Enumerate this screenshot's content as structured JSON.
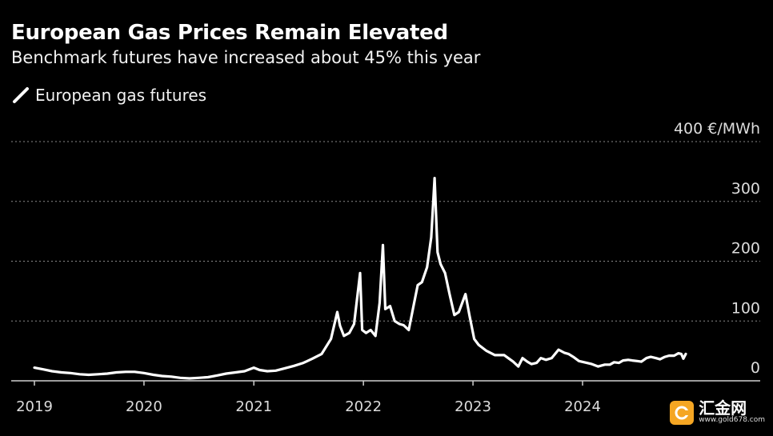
{
  "header": {
    "title": "European Gas Prices Remain Elevated",
    "subtitle": "Benchmark futures have increased about 45% this year"
  },
  "legend": {
    "label": "European gas futures",
    "color": "#ffffff"
  },
  "watermark": {
    "name": "汇金网",
    "url": "www.gold678.com",
    "badge_color": "#f5a623"
  },
  "chart_data": {
    "type": "line",
    "title": "European Gas Prices Remain Elevated",
    "subtitle": "Benchmark futures have increased about 45% this year",
    "ylabel": "",
    "y_unit": "€/MWh",
    "ylim": [
      0,
      400
    ],
    "xlim": [
      "2019-01-01",
      "2024-12-31"
    ],
    "y_ticks": [
      0,
      100,
      200,
      300,
      400
    ],
    "y_tick_labels": [
      "0",
      "100",
      "200",
      "300",
      "400 €/MWh"
    ],
    "x_tick_labels": [
      "2019",
      "2020",
      "2021",
      "2022",
      "2023",
      "2024"
    ],
    "x_ticks": [
      "2019-01-01",
      "2020-01-01",
      "2021-01-01",
      "2022-01-01",
      "2023-01-01",
      "2024-01-01"
    ],
    "grid": true,
    "legend_position": "top-left",
    "series": [
      {
        "name": "European gas futures",
        "color": "#ffffff",
        "points": [
          [
            "2019-01-01",
            22
          ],
          [
            "2019-02-01",
            19
          ],
          [
            "2019-03-01",
            16
          ],
          [
            "2019-04-01",
            14
          ],
          [
            "2019-05-01",
            13
          ],
          [
            "2019-06-01",
            11
          ],
          [
            "2019-07-01",
            10
          ],
          [
            "2019-08-01",
            11
          ],
          [
            "2019-09-01",
            12
          ],
          [
            "2019-10-01",
            14
          ],
          [
            "2019-11-01",
            15
          ],
          [
            "2019-12-01",
            15
          ],
          [
            "2020-01-01",
            13
          ],
          [
            "2020-02-01",
            10
          ],
          [
            "2020-03-01",
            8
          ],
          [
            "2020-04-01",
            7
          ],
          [
            "2020-05-01",
            5
          ],
          [
            "2020-06-01",
            4
          ],
          [
            "2020-07-01",
            5
          ],
          [
            "2020-08-01",
            6
          ],
          [
            "2020-09-01",
            9
          ],
          [
            "2020-10-01",
            12
          ],
          [
            "2020-11-01",
            14
          ],
          [
            "2020-12-01",
            16
          ],
          [
            "2021-01-01",
            22
          ],
          [
            "2021-01-20",
            18
          ],
          [
            "2021-02-15",
            16
          ],
          [
            "2021-03-15",
            17
          ],
          [
            "2021-04-15",
            21
          ],
          [
            "2021-05-15",
            25
          ],
          [
            "2021-06-15",
            30
          ],
          [
            "2021-07-15",
            37
          ],
          [
            "2021-08-15",
            45
          ],
          [
            "2021-09-15",
            70
          ],
          [
            "2021-10-06",
            115
          ],
          [
            "2021-10-15",
            92
          ],
          [
            "2021-10-28",
            75
          ],
          [
            "2021-11-15",
            80
          ],
          [
            "2021-12-01",
            95
          ],
          [
            "2021-12-21",
            180
          ],
          [
            "2021-12-28",
            85
          ],
          [
            "2022-01-10",
            80
          ],
          [
            "2022-01-25",
            85
          ],
          [
            "2022-02-10",
            75
          ],
          [
            "2022-02-24",
            130
          ],
          [
            "2022-03-07",
            227
          ],
          [
            "2022-03-15",
            120
          ],
          [
            "2022-03-31",
            125
          ],
          [
            "2022-04-15",
            100
          ],
          [
            "2022-05-01",
            95
          ],
          [
            "2022-05-15",
            93
          ],
          [
            "2022-06-01",
            85
          ],
          [
            "2022-06-15",
            120
          ],
          [
            "2022-07-01",
            160
          ],
          [
            "2022-07-15",
            165
          ],
          [
            "2022-08-01",
            190
          ],
          [
            "2022-08-15",
            240
          ],
          [
            "2022-08-26",
            339
          ],
          [
            "2022-09-05",
            215
          ],
          [
            "2022-09-15",
            195
          ],
          [
            "2022-09-30",
            180
          ],
          [
            "2022-10-15",
            145
          ],
          [
            "2022-10-31",
            110
          ],
          [
            "2022-11-15",
            115
          ],
          [
            "2022-12-07",
            145
          ],
          [
            "2022-12-20",
            110
          ],
          [
            "2023-01-05",
            70
          ],
          [
            "2023-01-20",
            60
          ],
          [
            "2023-02-15",
            50
          ],
          [
            "2023-03-15",
            43
          ],
          [
            "2023-04-15",
            43
          ],
          [
            "2023-05-15",
            32
          ],
          [
            "2023-06-01",
            24
          ],
          [
            "2023-06-15",
            38
          ],
          [
            "2023-07-01",
            32
          ],
          [
            "2023-07-15",
            28
          ],
          [
            "2023-08-01",
            30
          ],
          [
            "2023-08-15",
            38
          ],
          [
            "2023-09-01",
            35
          ],
          [
            "2023-09-20",
            38
          ],
          [
            "2023-10-13",
            52
          ],
          [
            "2023-11-01",
            47
          ],
          [
            "2023-11-15",
            45
          ],
          [
            "2023-12-01",
            40
          ],
          [
            "2023-12-20",
            33
          ],
          [
            "2024-01-15",
            30
          ],
          [
            "2024-02-01",
            28
          ],
          [
            "2024-02-22",
            24
          ],
          [
            "2024-03-15",
            27
          ],
          [
            "2024-04-01",
            27
          ],
          [
            "2024-04-15",
            31
          ],
          [
            "2024-05-01",
            30
          ],
          [
            "2024-05-15",
            34
          ],
          [
            "2024-06-01",
            35
          ],
          [
            "2024-06-15",
            34
          ],
          [
            "2024-07-01",
            33
          ],
          [
            "2024-07-15",
            32
          ],
          [
            "2024-08-01",
            38
          ],
          [
            "2024-08-15",
            40
          ],
          [
            "2024-09-01",
            38
          ],
          [
            "2024-09-15",
            36
          ],
          [
            "2024-10-01",
            40
          ],
          [
            "2024-10-15",
            42
          ],
          [
            "2024-11-01",
            42
          ],
          [
            "2024-11-15",
            46
          ],
          [
            "2024-11-25",
            45
          ],
          [
            "2024-12-02",
            37
          ],
          [
            "2024-12-10",
            45
          ]
        ]
      }
    ]
  }
}
